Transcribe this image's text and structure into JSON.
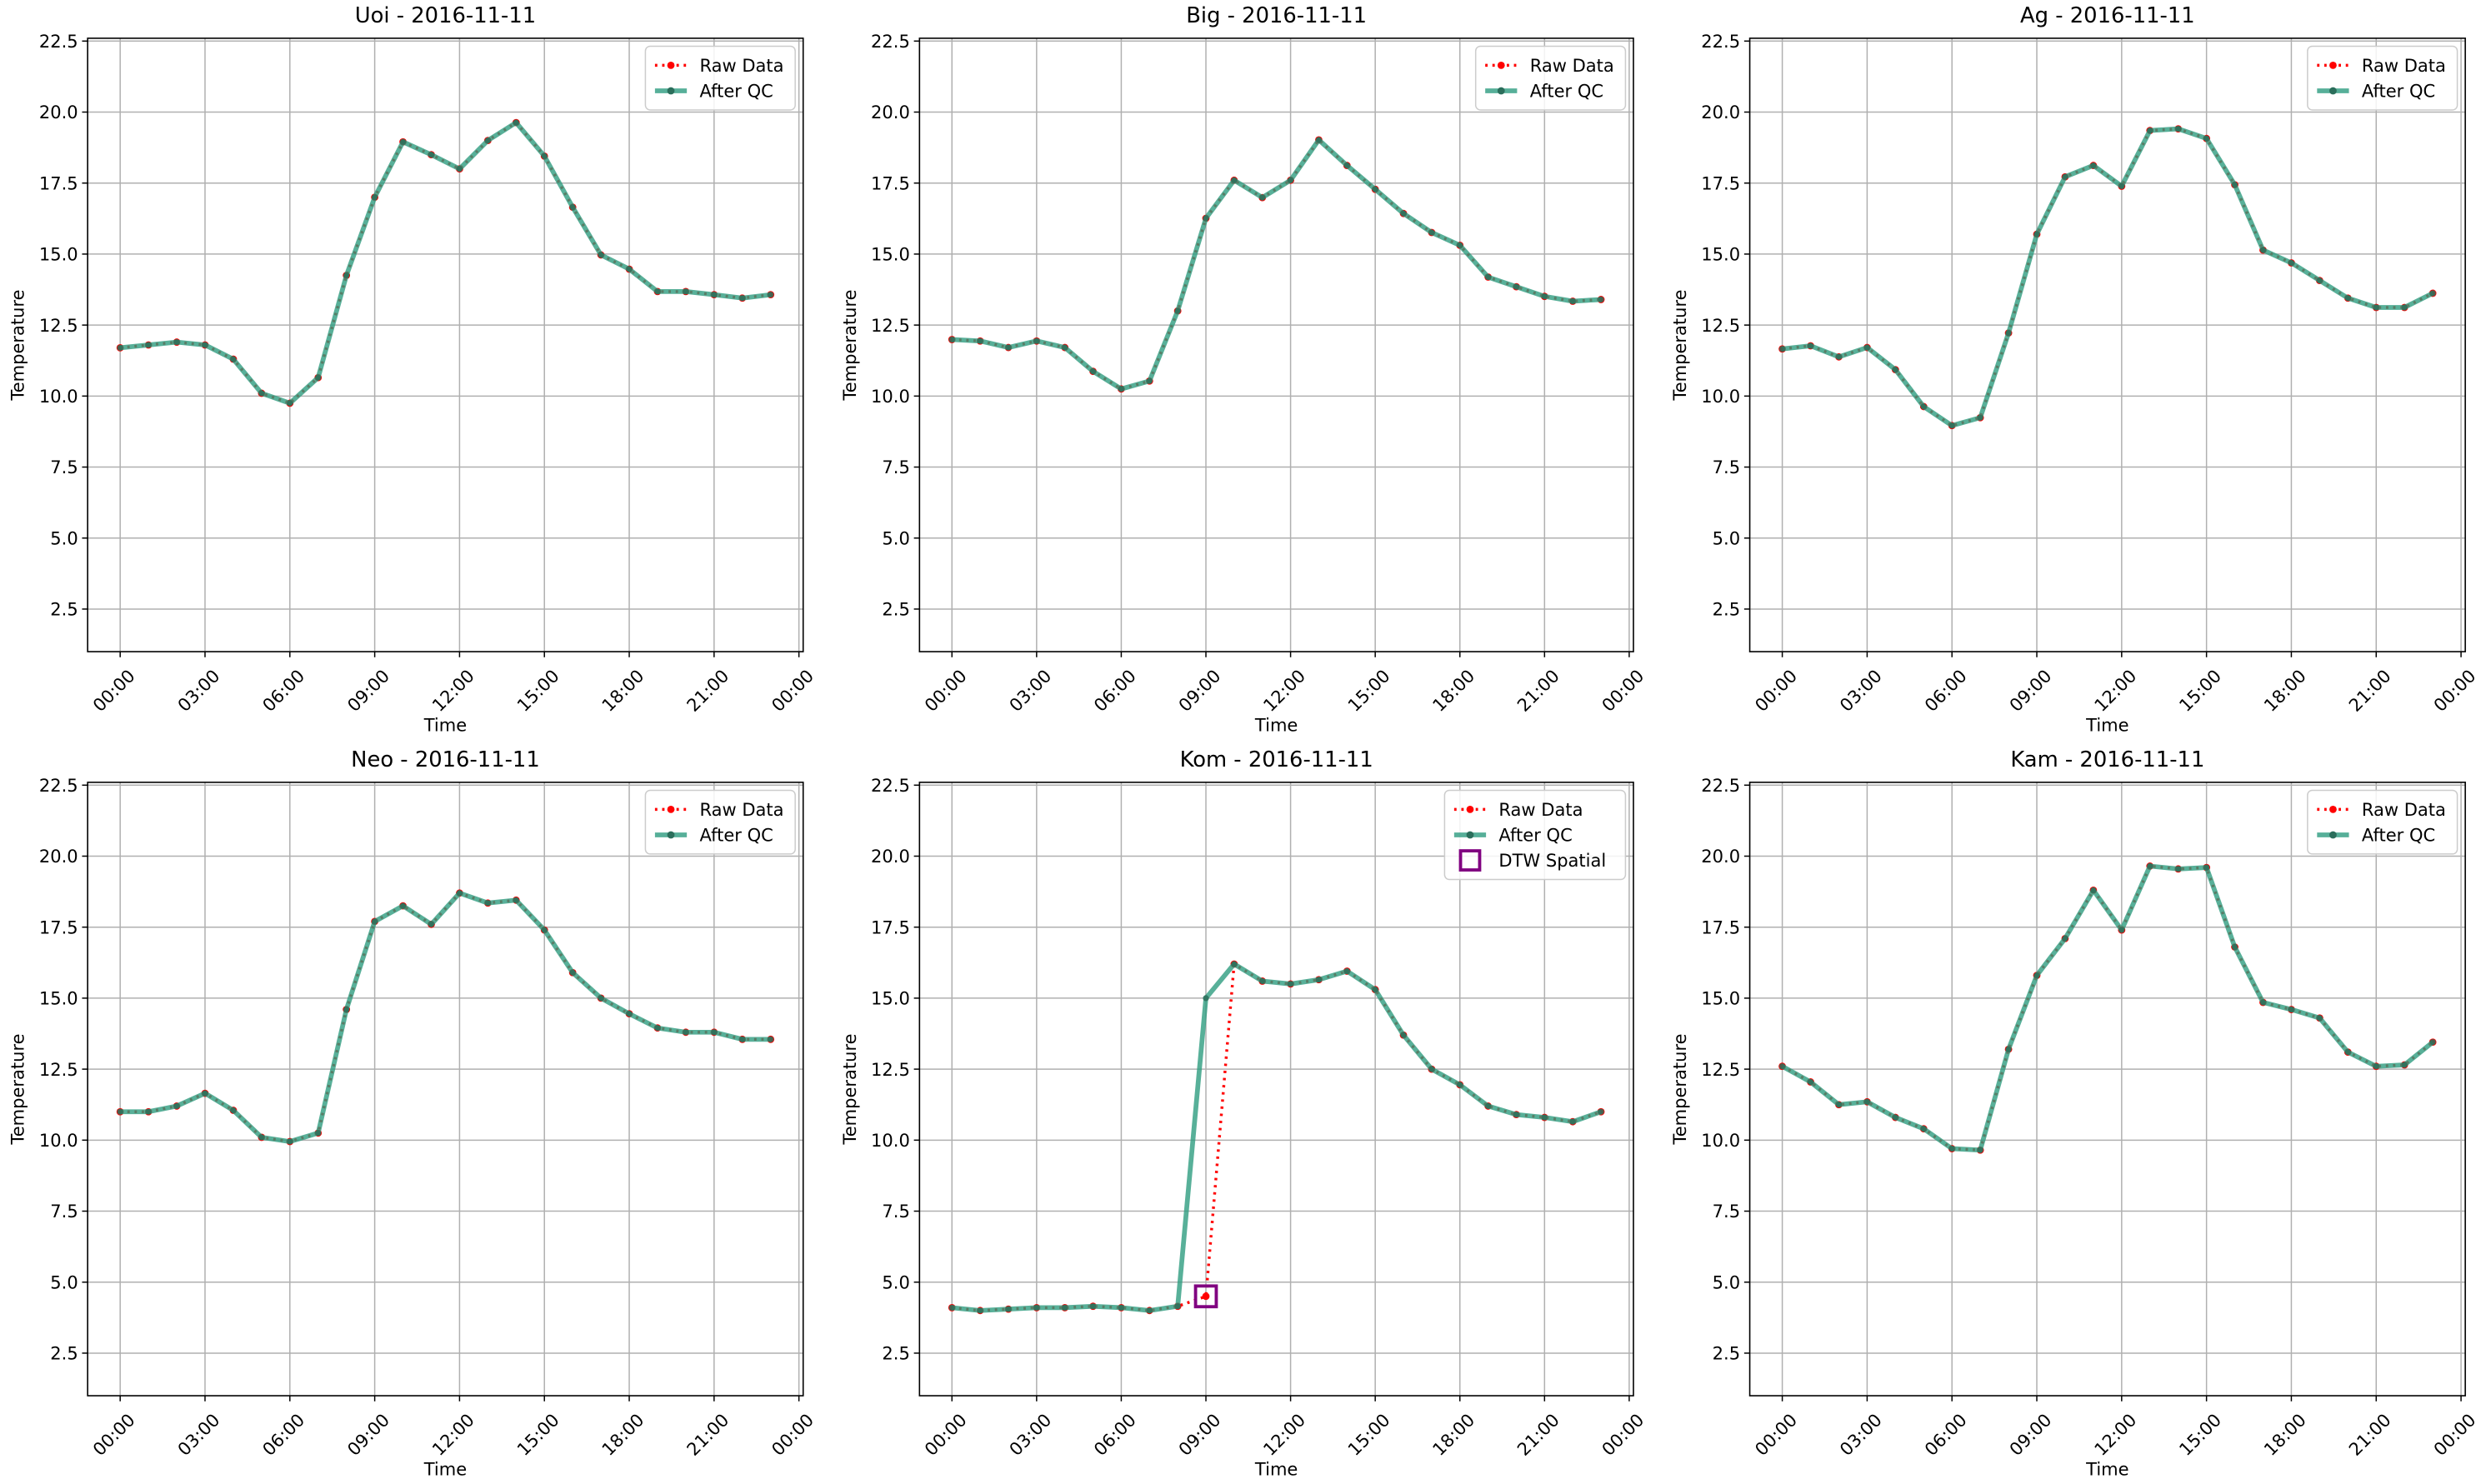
{
  "chart_data": [
    {
      "type": "line",
      "title": "Uoi - 2016-11-11",
      "xlabel": "Time",
      "ylabel": "Temperature",
      "grid": true,
      "legend": "upper right",
      "x": [
        0,
        1,
        2,
        3,
        4,
        5,
        6,
        7,
        8,
        9,
        10,
        11,
        12,
        13,
        14,
        15,
        16,
        17,
        18,
        19,
        20,
        21,
        22,
        23
      ],
      "xlim": [
        -1.15,
        24.15
      ],
      "xticks": [
        {
          "value": 0,
          "label": "00:00"
        },
        {
          "value": 3,
          "label": "03:00"
        },
        {
          "value": 6,
          "label": "06:00"
        },
        {
          "value": 9,
          "label": "09:00"
        },
        {
          "value": 12,
          "label": "12:00"
        },
        {
          "value": 15,
          "label": "15:00"
        },
        {
          "value": 18,
          "label": "18:00"
        },
        {
          "value": 21,
          "label": "21:00"
        },
        {
          "value": 24,
          "label": "00:00"
        }
      ],
      "ylim": [
        1.0,
        22.6
      ],
      "yticks": [
        2.5,
        {
          "value": 5,
          "label": "5.0"
        },
        7.5,
        {
          "value": 10,
          "label": "10.0"
        },
        12.5,
        {
          "value": 15,
          "label": "15.0"
        },
        17.5,
        {
          "value": 20,
          "label": "20.0"
        },
        22.5
      ],
      "series": [
        {
          "name": "Raw Data",
          "color": "red",
          "style": "dotted",
          "values": [
            11.7,
            11.8,
            11.9,
            11.8,
            11.3,
            10.1,
            9.75,
            10.65,
            14.25,
            17.0,
            18.95,
            18.5,
            18.0,
            19.0,
            19.63,
            18.45,
            16.65,
            14.97,
            14.47,
            13.68,
            13.68,
            13.57,
            13.45,
            13.57
          ]
        },
        {
          "name": "After QC",
          "color": "#2e9c80",
          "style": "solid",
          "values": [
            11.7,
            11.8,
            11.9,
            11.8,
            11.3,
            10.1,
            9.75,
            10.65,
            14.25,
            17.0,
            18.95,
            18.5,
            18.0,
            19.0,
            19.63,
            18.45,
            16.65,
            14.97,
            14.47,
            13.68,
            13.68,
            13.57,
            13.45,
            13.57
          ]
        }
      ]
    },
    {
      "type": "line",
      "title": "Big - 2016-11-11",
      "xlabel": "Time",
      "ylabel": "Temperature",
      "grid": true,
      "legend": "upper right",
      "x": [
        0,
        1,
        2,
        3,
        4,
        5,
        6,
        7,
        8,
        9,
        10,
        11,
        12,
        13,
        14,
        15,
        16,
        17,
        18,
        19,
        20,
        21,
        22,
        23
      ],
      "xlim": [
        -1.15,
        24.15
      ],
      "xticks": [
        {
          "value": 0,
          "label": "00:00"
        },
        {
          "value": 3,
          "label": "03:00"
        },
        {
          "value": 6,
          "label": "06:00"
        },
        {
          "value": 9,
          "label": "09:00"
        },
        {
          "value": 12,
          "label": "12:00"
        },
        {
          "value": 15,
          "label": "15:00"
        },
        {
          "value": 18,
          "label": "18:00"
        },
        {
          "value": 21,
          "label": "21:00"
        },
        {
          "value": 24,
          "label": "00:00"
        }
      ],
      "ylim": [
        1.0,
        22.6
      ],
      "yticks": [
        2.5,
        {
          "value": 5,
          "label": "5.0"
        },
        7.5,
        {
          "value": 10,
          "label": "10.0"
        },
        12.5,
        {
          "value": 15,
          "label": "15.0"
        },
        17.5,
        {
          "value": 20,
          "label": "20.0"
        },
        22.5
      ],
      "series": [
        {
          "name": "Raw Data",
          "color": "red",
          "style": "dotted",
          "values": [
            11.99,
            11.94,
            11.71,
            11.94,
            11.71,
            10.87,
            10.25,
            10.53,
            13.0,
            16.26,
            17.6,
            16.99,
            17.6,
            19.02,
            18.12,
            17.28,
            16.43,
            15.76,
            15.31,
            14.19,
            13.85,
            13.51,
            13.34,
            13.4
          ]
        },
        {
          "name": "After QC",
          "color": "#2e9c80",
          "style": "solid",
          "values": [
            11.99,
            11.94,
            11.71,
            11.94,
            11.71,
            10.87,
            10.25,
            10.53,
            13.0,
            16.26,
            17.6,
            16.99,
            17.6,
            19.02,
            18.12,
            17.28,
            16.43,
            15.76,
            15.31,
            14.19,
            13.85,
            13.51,
            13.34,
            13.4
          ]
        }
      ]
    },
    {
      "type": "line",
      "title": "Ag - 2016-11-11",
      "xlabel": "Time",
      "ylabel": "Temperature",
      "grid": true,
      "legend": "upper right",
      "x": [
        0,
        1,
        2,
        3,
        4,
        5,
        6,
        7,
        8,
        9,
        10,
        11,
        12,
        13,
        14,
        15,
        16,
        17,
        18,
        19,
        20,
        21,
        22,
        23
      ],
      "xlim": [
        -1.15,
        24.15
      ],
      "xticks": [
        {
          "value": 0,
          "label": "00:00"
        },
        {
          "value": 3,
          "label": "03:00"
        },
        {
          "value": 6,
          "label": "06:00"
        },
        {
          "value": 9,
          "label": "09:00"
        },
        {
          "value": 12,
          "label": "12:00"
        },
        {
          "value": 15,
          "label": "15:00"
        },
        {
          "value": 18,
          "label": "18:00"
        },
        {
          "value": 21,
          "label": "21:00"
        },
        {
          "value": 24,
          "label": "00:00"
        }
      ],
      "ylim": [
        1.0,
        22.6
      ],
      "yticks": [
        2.5,
        {
          "value": 5,
          "label": "5.0"
        },
        7.5,
        {
          "value": 10,
          "label": "10.0"
        },
        12.5,
        {
          "value": 15,
          "label": "15.0"
        },
        17.5,
        {
          "value": 20,
          "label": "20.0"
        },
        22.5
      ],
      "series": [
        {
          "name": "Raw Data",
          "color": "red",
          "style": "dotted",
          "values": [
            11.66,
            11.77,
            11.38,
            11.71,
            10.93,
            9.63,
            8.96,
            9.24,
            12.22,
            15.7,
            17.72,
            18.12,
            17.39,
            19.35,
            19.41,
            19.07,
            17.44,
            15.14,
            14.69,
            14.07,
            13.45,
            13.12,
            13.12,
            13.62
          ]
        },
        {
          "name": "After QC",
          "color": "#2e9c80",
          "style": "solid",
          "values": [
            11.66,
            11.77,
            11.38,
            11.71,
            10.93,
            9.63,
            8.96,
            9.24,
            12.22,
            15.7,
            17.72,
            18.12,
            17.39,
            19.35,
            19.41,
            19.07,
            17.44,
            15.14,
            14.69,
            14.07,
            13.45,
            13.12,
            13.12,
            13.62
          ]
        }
      ]
    },
    {
      "type": "line",
      "title": "Neo - 2016-11-11",
      "xlabel": "Time",
      "ylabel": "Temperature",
      "grid": true,
      "legend": "upper right",
      "x": [
        0,
        1,
        2,
        3,
        4,
        5,
        6,
        7,
        8,
        9,
        10,
        11,
        12,
        13,
        14,
        15,
        16,
        17,
        18,
        19,
        20,
        21,
        22,
        23
      ],
      "xlim": [
        -1.15,
        24.15
      ],
      "xticks": [
        {
          "value": 0,
          "label": "00:00"
        },
        {
          "value": 3,
          "label": "03:00"
        },
        {
          "value": 6,
          "label": "06:00"
        },
        {
          "value": 9,
          "label": "09:00"
        },
        {
          "value": 12,
          "label": "12:00"
        },
        {
          "value": 15,
          "label": "15:00"
        },
        {
          "value": 18,
          "label": "18:00"
        },
        {
          "value": 21,
          "label": "21:00"
        },
        {
          "value": 24,
          "label": "00:00"
        }
      ],
      "ylim": [
        1.0,
        22.6
      ],
      "yticks": [
        2.5,
        {
          "value": 5,
          "label": "5.0"
        },
        7.5,
        {
          "value": 10,
          "label": "10.0"
        },
        12.5,
        {
          "value": 15,
          "label": "15.0"
        },
        17.5,
        {
          "value": 20,
          "label": "20.0"
        },
        22.5
      ],
      "series": [
        {
          "name": "Raw Data",
          "color": "red",
          "style": "dotted",
          "values": [
            11.0,
            11.0,
            11.2,
            11.65,
            11.05,
            10.1,
            9.95,
            10.25,
            14.6,
            17.7,
            18.25,
            17.6,
            18.7,
            18.35,
            18.45,
            17.4,
            15.9,
            15.0,
            14.45,
            13.95,
            13.8,
            13.8,
            13.55,
            13.55
          ]
        },
        {
          "name": "After QC",
          "color": "#2e9c80",
          "style": "solid",
          "values": [
            11.0,
            11.0,
            11.2,
            11.65,
            11.05,
            10.1,
            9.95,
            10.25,
            14.6,
            17.7,
            18.25,
            17.6,
            18.7,
            18.35,
            18.45,
            17.4,
            15.9,
            15.0,
            14.45,
            13.95,
            13.8,
            13.8,
            13.55,
            13.55
          ]
        }
      ]
    },
    {
      "type": "line",
      "title": "Kom - 2016-11-11",
      "xlabel": "Time",
      "ylabel": "Temperature",
      "grid": true,
      "legend": "upper right",
      "x": [
        0,
        1,
        2,
        3,
        4,
        5,
        6,
        7,
        8,
        9,
        10,
        11,
        12,
        13,
        14,
        15,
        16,
        17,
        18,
        19,
        20,
        21,
        22,
        23
      ],
      "xlim": [
        -1.15,
        24.15
      ],
      "xticks": [
        {
          "value": 0,
          "label": "00:00"
        },
        {
          "value": 3,
          "label": "03:00"
        },
        {
          "value": 6,
          "label": "06:00"
        },
        {
          "value": 9,
          "label": "09:00"
        },
        {
          "value": 12,
          "label": "12:00"
        },
        {
          "value": 15,
          "label": "15:00"
        },
        {
          "value": 18,
          "label": "18:00"
        },
        {
          "value": 21,
          "label": "21:00"
        },
        {
          "value": 24,
          "label": "00:00"
        }
      ],
      "ylim": [
        1.0,
        22.6
      ],
      "yticks": [
        2.5,
        {
          "value": 5,
          "label": "5.0"
        },
        7.5,
        {
          "value": 10,
          "label": "10.0"
        },
        12.5,
        {
          "value": 15,
          "label": "15.0"
        },
        17.5,
        {
          "value": 20,
          "label": "20.0"
        },
        22.5
      ],
      "series": [
        {
          "name": "Raw Data",
          "color": "red",
          "style": "dotted",
          "values": [
            4.1,
            4.0,
            4.05,
            4.1,
            4.1,
            4.15,
            4.1,
            4.0,
            4.15,
            4.5,
            16.2,
            15.6,
            15.5,
            15.65,
            15.95,
            15.3,
            13.7,
            12.5,
            11.95,
            11.2,
            10.9,
            10.8,
            10.65,
            11.0
          ]
        },
        {
          "name": "After QC",
          "color": "#2e9c80",
          "style": "solid",
          "values": [
            4.1,
            4.0,
            4.05,
            4.1,
            4.1,
            4.15,
            4.1,
            4.0,
            4.15,
            15.0,
            16.2,
            15.6,
            15.5,
            15.65,
            15.95,
            15.3,
            13.7,
            12.5,
            11.95,
            11.2,
            10.9,
            10.8,
            10.65,
            11.0
          ]
        },
        {
          "name": "DTW Spatial",
          "color": "purple",
          "style": "square",
          "x": [
            9
          ],
          "values": [
            4.5
          ]
        }
      ]
    },
    {
      "type": "line",
      "title": "Kam - 2016-11-11",
      "xlabel": "Time",
      "ylabel": "Temperature",
      "grid": true,
      "legend": "upper right",
      "x": [
        0,
        1,
        2,
        3,
        4,
        5,
        6,
        7,
        8,
        9,
        10,
        11,
        12,
        13,
        14,
        15,
        16,
        17,
        18,
        19,
        20,
        21,
        22,
        23
      ],
      "xlim": [
        -1.15,
        24.15
      ],
      "xticks": [
        {
          "value": 0,
          "label": "00:00"
        },
        {
          "value": 3,
          "label": "03:00"
        },
        {
          "value": 6,
          "label": "06:00"
        },
        {
          "value": 9,
          "label": "09:00"
        },
        {
          "value": 12,
          "label": "12:00"
        },
        {
          "value": 15,
          "label": "15:00"
        },
        {
          "value": 18,
          "label": "18:00"
        },
        {
          "value": 21,
          "label": "21:00"
        },
        {
          "value": 24,
          "label": "00:00"
        }
      ],
      "ylim": [
        1.0,
        22.6
      ],
      "yticks": [
        2.5,
        {
          "value": 5,
          "label": "5.0"
        },
        7.5,
        {
          "value": 10,
          "label": "10.0"
        },
        12.5,
        {
          "value": 15,
          "label": "15.0"
        },
        17.5,
        {
          "value": 20,
          "label": "20.0"
        },
        22.5
      ],
      "series": [
        {
          "name": "Raw Data",
          "color": "red",
          "style": "dotted",
          "values": [
            12.6,
            12.05,
            11.25,
            11.35,
            10.8,
            10.4,
            9.7,
            9.65,
            13.2,
            15.8,
            17.1,
            18.8,
            17.4,
            19.65,
            19.55,
            19.6,
            16.8,
            14.85,
            14.6,
            14.3,
            13.1,
            12.6,
            12.65,
            13.45
          ]
        },
        {
          "name": "After QC",
          "color": "#2e9c80",
          "style": "solid",
          "values": [
            12.6,
            12.05,
            11.25,
            11.35,
            10.8,
            10.4,
            9.7,
            9.65,
            13.2,
            15.8,
            17.1,
            18.8,
            17.4,
            19.65,
            19.55,
            19.6,
            16.8,
            14.85,
            14.6,
            14.3,
            13.1,
            12.6,
            12.65,
            13.45
          ]
        }
      ]
    }
  ]
}
